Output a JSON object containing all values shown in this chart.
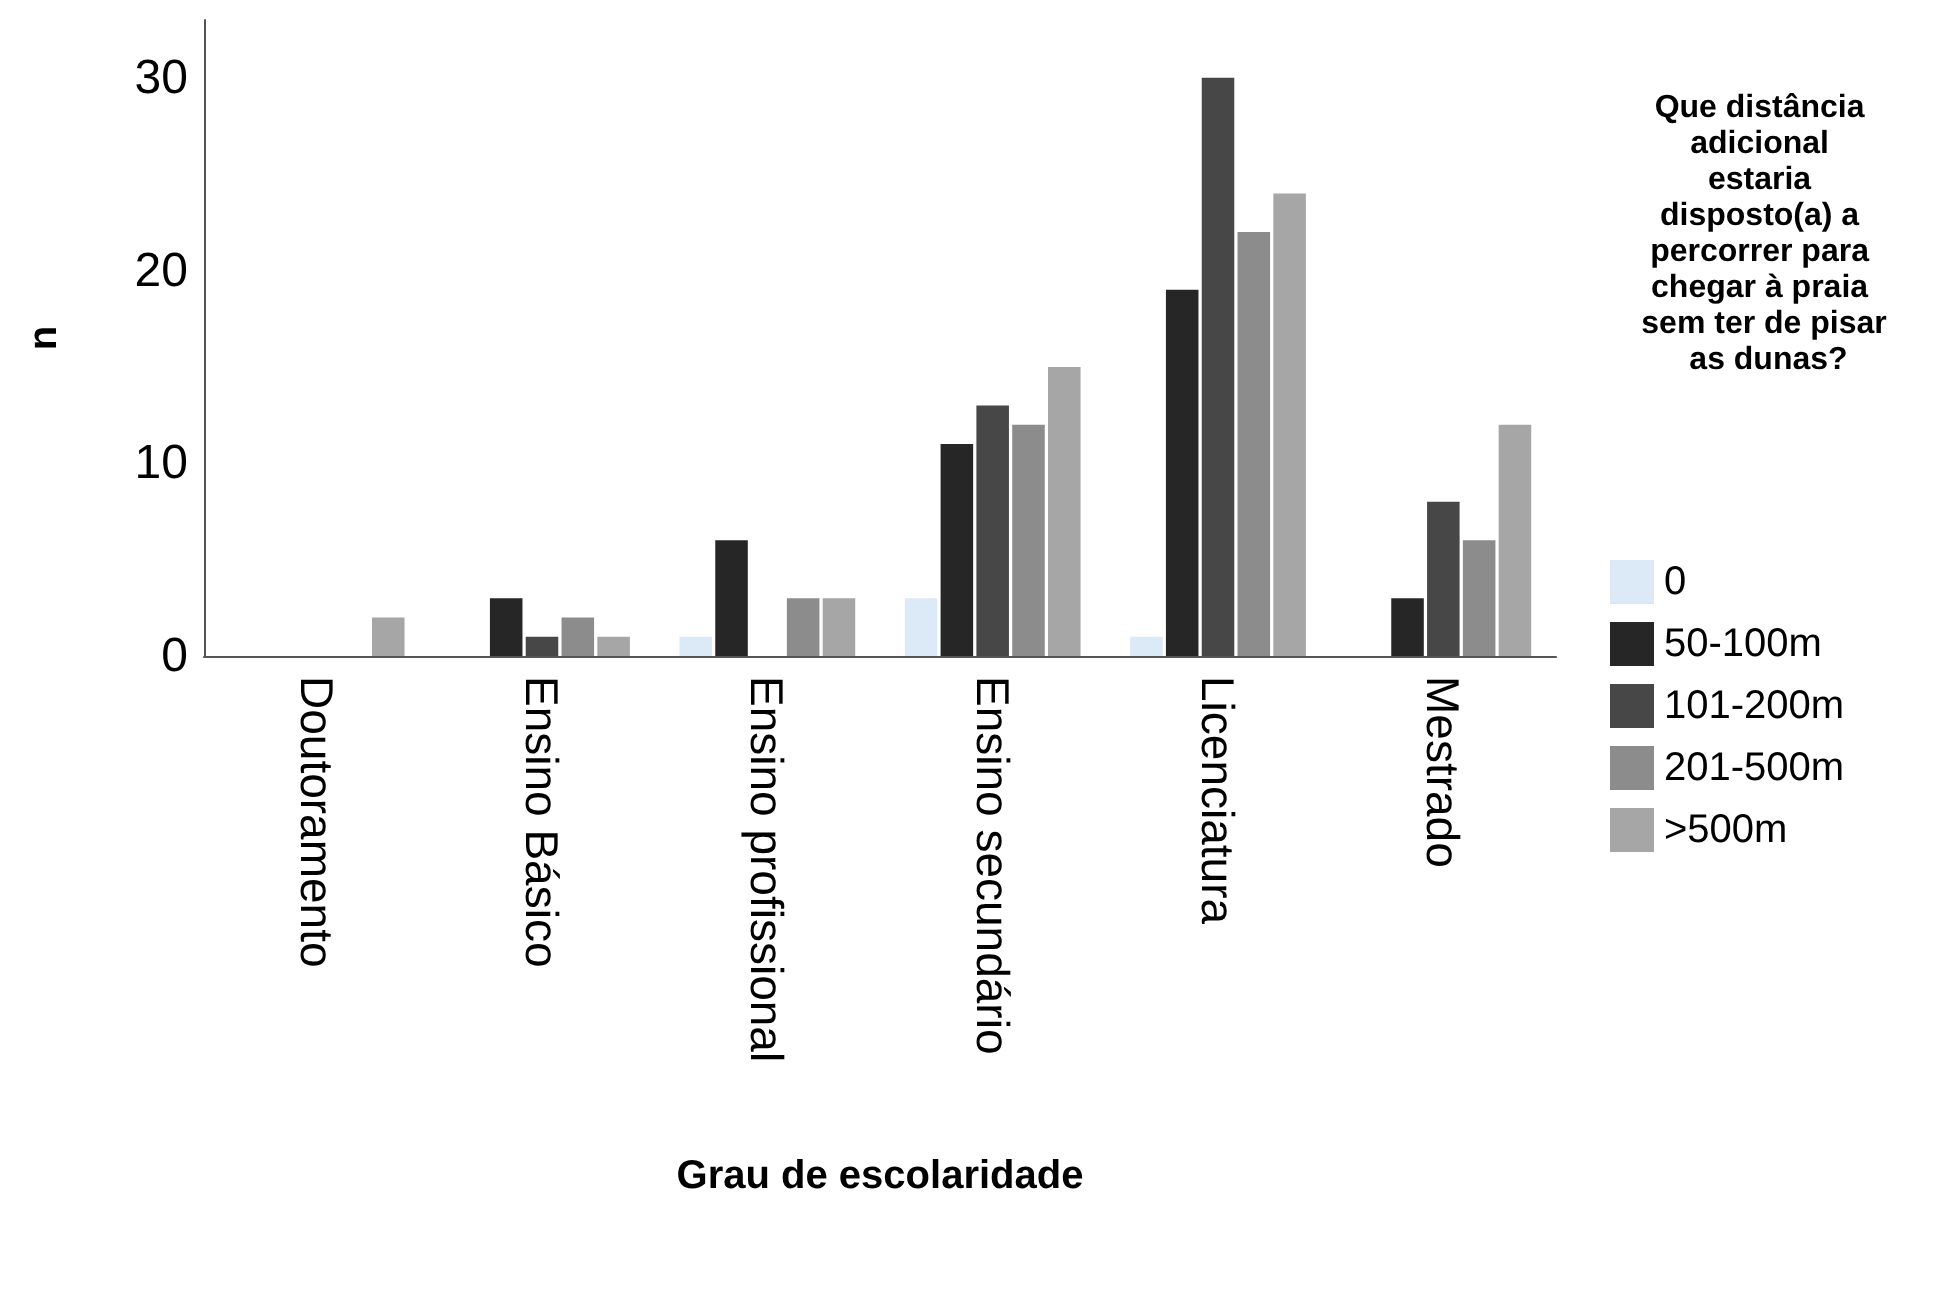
{
  "chart_data": {
    "type": "bar",
    "xlabel": "Grau de escolaridade",
    "ylabel": "n",
    "legend_title": "Que distância adicional estaria disposto(a) a percorrer para chegar à praia sem ter de pisar as dunas?",
    "categories": [
      "Doutoramento",
      "Ensino Básico",
      "Ensino profissional",
      "Ensino secundário",
      "Licenciatura",
      "Mestrado"
    ],
    "series": [
      {
        "name": "0",
        "color": "#dce9f7",
        "values": [
          0,
          0,
          1,
          3,
          1,
          0
        ]
      },
      {
        "name": "50-100m",
        "color": "#262626",
        "values": [
          0,
          3,
          6,
          11,
          19,
          3
        ]
      },
      {
        "name": "101-200m",
        "color": "#474747",
        "values": [
          0,
          1,
          0,
          13,
          30,
          8
        ]
      },
      {
        "name": "201-500m",
        "color": "#8c8c8c",
        "values": [
          0,
          2,
          3,
          12,
          22,
          6
        ]
      },
      {
        "name": ">500m",
        "color": "#a6a6a6",
        "values": [
          2,
          1,
          3,
          15,
          24,
          12
        ]
      }
    ],
    "ylim": [
      0,
      33
    ],
    "yticks": [
      0,
      10,
      20,
      30
    ],
    "grid": false,
    "legend": "right"
  }
}
